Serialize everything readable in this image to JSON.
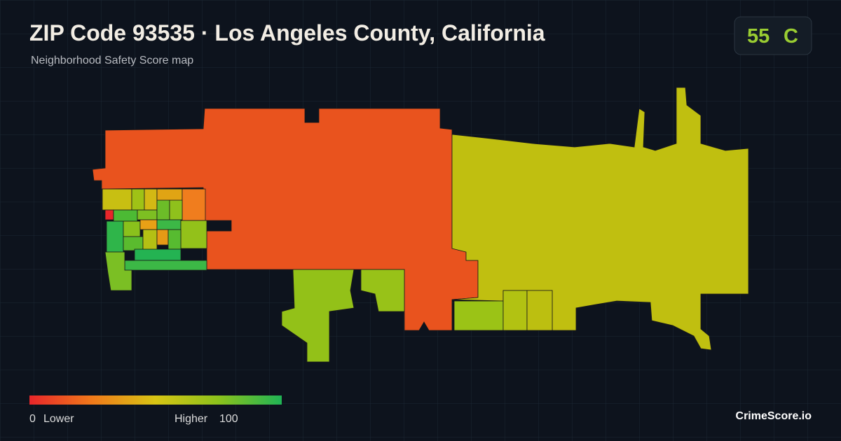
{
  "header": {
    "title": "ZIP Code 93535 · Los Angeles County, California",
    "subtitle": "Neighborhood Safety Score map"
  },
  "score": {
    "value": 55,
    "grade": "C"
  },
  "legend": {
    "min": 0,
    "min_label": "Lower",
    "max_label": "Higher",
    "max": 100
  },
  "brand": "CrimeScore.io"
}
